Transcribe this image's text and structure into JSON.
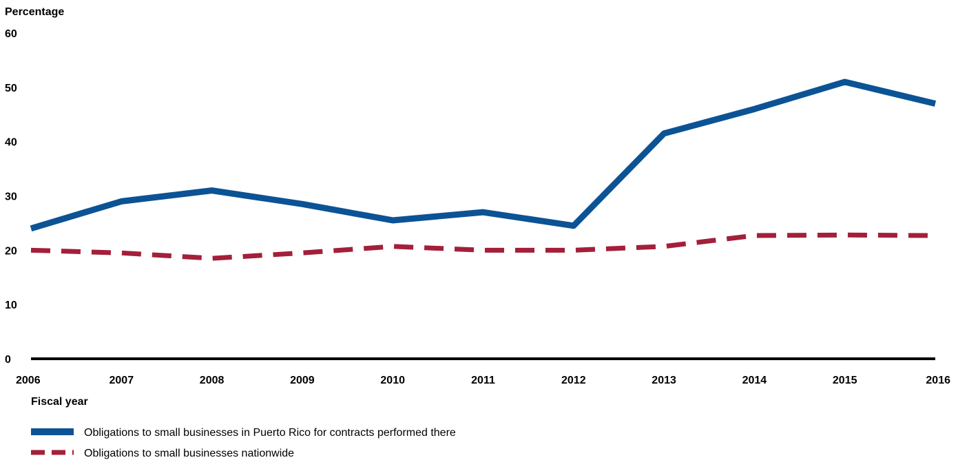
{
  "chart_data": {
    "type": "line",
    "title": "",
    "ylabel": "Percentage",
    "xlabel": "Fiscal year",
    "ylim": [
      0,
      60
    ],
    "yticks": [
      "0",
      "10",
      "20",
      "30",
      "40",
      "50",
      "60"
    ],
    "x": [
      "2006",
      "2007",
      "2008",
      "2009",
      "2010",
      "2011",
      "2012",
      "2013",
      "2014",
      "2015",
      "2016"
    ],
    "grid": false,
    "legend_position": "bottom-left",
    "series": [
      {
        "name": "Obligations to small businesses in Puerto Rico for contracts performed there",
        "values": [
          24,
          29,
          31,
          28.5,
          25.5,
          27,
          24.5,
          41.5,
          46,
          51,
          47
        ],
        "color": "#0b5394",
        "style": "solid"
      },
      {
        "name": "Obligations to small businesses nationwide",
        "values": [
          20,
          19.5,
          18.5,
          19.5,
          20.7,
          20,
          20,
          20.7,
          22.7,
          22.8,
          22.7
        ],
        "color": "#a31f3a",
        "style": "dashed"
      }
    ]
  }
}
